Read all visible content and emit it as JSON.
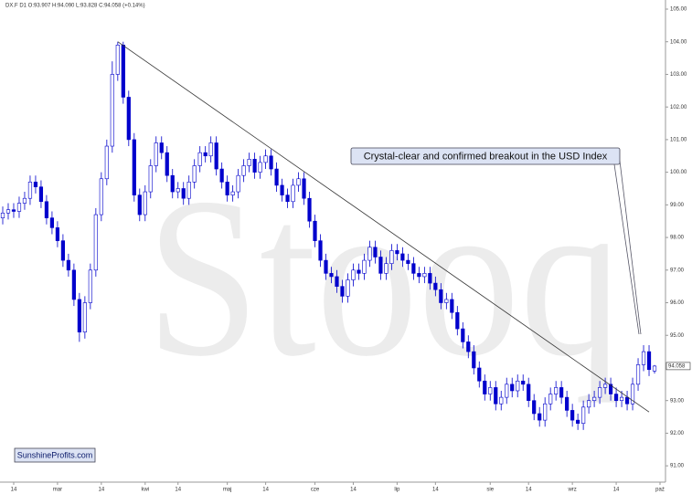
{
  "chart_data": {
    "type": "candlestick",
    "header": "DX.F  D1  O:93.907  H:94.090  L:93.828  C:94.058  (+0.14%)",
    "watermark": "Stooq",
    "annotation": "Crystal-clear and confirmed breakout in the USD Index",
    "source": "SunshineProfits.com",
    "up_color": "#ffffff",
    "down_color": "#0000cc",
    "line_color": "#0000cc",
    "open": [
      98.6,
      98.75,
      98.85,
      98.8,
      99.05,
      99.2,
      99.7,
      99.55,
      99.1,
      98.6,
      98.3,
      97.9,
      97.3,
      97.0,
      96.1,
      95.1,
      96.0,
      97.0,
      98.7,
      99.8,
      100.8,
      103.0,
      103.9,
      102.3,
      101.0,
      99.3,
      98.7,
      99.4,
      100.2,
      100.9,
      100.6,
      99.9,
      99.4,
      99.5,
      99.2,
      99.7,
      100.2,
      100.6,
      100.5,
      100.9,
      100.1,
      99.7,
      99.3,
      99.4,
      99.9,
      100.2,
      100.4,
      100.0,
      100.3,
      100.5,
      100.1,
      99.6,
      99.3,
      99.1,
      99.6,
      99.8,
      99.2,
      98.5,
      97.9,
      97.3,
      96.9,
      96.8,
      96.5,
      96.2,
      96.7,
      97.0,
      96.9,
      97.3,
      97.7,
      97.4,
      96.9,
      97.2,
      97.6,
      97.5,
      97.3,
      97.2,
      96.9,
      96.8,
      96.9,
      96.6,
      96.4,
      96.0,
      96.1,
      95.7,
      95.2,
      94.8,
      94.5,
      94.0,
      93.6,
      93.2,
      93.4,
      92.9,
      93.1,
      93.5,
      93.3,
      93.6,
      93.5,
      93.0,
      92.6,
      92.4,
      92.9,
      93.2,
      93.4,
      93.1,
      92.7,
      92.4,
      92.3,
      92.8,
      93.0,
      93.1,
      93.4,
      93.5,
      93.2,
      93.0,
      93.1,
      92.9,
      93.5,
      94.1,
      94.5,
      93.907
    ],
    "high": [
      98.95,
      99.05,
      99.05,
      99.25,
      99.4,
      99.9,
      99.9,
      99.75,
      99.3,
      98.8,
      98.5,
      98.1,
      97.5,
      97.2,
      96.3,
      96.2,
      97.2,
      98.9,
      100.0,
      101.0,
      103.4,
      104.0,
      104.0,
      102.5,
      101.2,
      99.5,
      99.6,
      100.4,
      101.1,
      101.1,
      100.8,
      100.1,
      99.7,
      99.7,
      99.9,
      100.4,
      100.8,
      100.8,
      101.1,
      101.1,
      100.3,
      99.9,
      99.6,
      100.1,
      100.4,
      100.6,
      100.6,
      100.5,
      100.7,
      100.7,
      100.3,
      99.8,
      99.5,
      99.8,
      100.0,
      100.0,
      99.4,
      98.7,
      98.1,
      97.5,
      97.1,
      97.0,
      96.7,
      96.9,
      97.2,
      97.2,
      97.5,
      97.9,
      97.9,
      97.6,
      97.4,
      97.8,
      97.8,
      97.7,
      97.5,
      97.4,
      97.1,
      97.1,
      97.1,
      96.8,
      96.6,
      96.3,
      96.3,
      95.9,
      95.4,
      95.0,
      94.7,
      94.2,
      93.8,
      93.6,
      93.6,
      93.3,
      93.7,
      93.7,
      93.8,
      93.8,
      93.7,
      93.2,
      92.8,
      93.1,
      93.4,
      93.6,
      93.6,
      93.3,
      92.9,
      92.6,
      93.0,
      93.2,
      93.3,
      93.6,
      93.7,
      93.7,
      93.4,
      93.3,
      93.3,
      93.7,
      94.3,
      94.7,
      94.7,
      94.09
    ],
    "low": [
      98.4,
      98.55,
      98.6,
      98.6,
      98.85,
      99.0,
      99.35,
      98.9,
      98.4,
      98.1,
      97.7,
      97.1,
      96.8,
      95.9,
      94.8,
      94.9,
      95.8,
      96.8,
      98.5,
      99.6,
      100.6,
      102.8,
      102.1,
      100.8,
      99.1,
      98.5,
      98.5,
      99.2,
      100.0,
      100.4,
      99.7,
      99.2,
      99.2,
      99.0,
      99.0,
      99.5,
      100.0,
      100.3,
      100.3,
      99.9,
      99.5,
      99.1,
      99.1,
      99.2,
      99.7,
      100.0,
      99.8,
      99.8,
      100.1,
      99.9,
      99.4,
      99.1,
      98.9,
      98.9,
      99.4,
      99.0,
      98.3,
      97.7,
      97.1,
      96.7,
      96.6,
      96.3,
      96.0,
      96.0,
      96.5,
      96.7,
      96.7,
      97.1,
      97.2,
      96.7,
      96.7,
      97.0,
      97.3,
      97.1,
      97.0,
      96.7,
      96.6,
      96.6,
      96.4,
      96.2,
      95.8,
      95.8,
      95.5,
      95.0,
      94.6,
      94.3,
      93.8,
      93.4,
      93.0,
      93.0,
      92.7,
      92.7,
      92.9,
      93.1,
      93.1,
      93.3,
      92.8,
      92.4,
      92.2,
      92.2,
      92.7,
      93.0,
      92.9,
      92.5,
      92.2,
      92.1,
      92.1,
      92.6,
      92.8,
      92.9,
      93.2,
      93.0,
      92.8,
      92.8,
      92.7,
      92.7,
      93.3,
      93.9,
      93.75,
      93.828
    ],
    "close": [
      98.75,
      98.85,
      98.8,
      99.05,
      99.2,
      99.7,
      99.55,
      99.1,
      98.6,
      98.3,
      97.9,
      97.3,
      97.0,
      96.1,
      95.1,
      96.0,
      97.0,
      98.7,
      99.8,
      100.8,
      103.0,
      103.9,
      102.3,
      101.0,
      99.3,
      98.7,
      99.4,
      100.2,
      100.9,
      100.6,
      99.9,
      99.4,
      99.5,
      99.2,
      99.7,
      100.2,
      100.6,
      100.5,
      100.9,
      100.1,
      99.7,
      99.3,
      99.4,
      99.9,
      100.2,
      100.4,
      100.0,
      100.3,
      100.5,
      100.1,
      99.6,
      99.3,
      99.1,
      99.6,
      99.8,
      99.2,
      98.5,
      97.9,
      97.3,
      96.9,
      96.8,
      96.5,
      96.2,
      96.7,
      97.0,
      96.9,
      97.3,
      97.7,
      97.4,
      96.9,
      97.2,
      97.6,
      97.5,
      97.3,
      97.2,
      96.9,
      96.8,
      96.9,
      96.6,
      96.4,
      96.0,
      96.1,
      95.7,
      95.2,
      94.8,
      94.5,
      94.0,
      93.6,
      93.2,
      93.4,
      92.9,
      93.1,
      93.5,
      93.3,
      93.6,
      93.5,
      93.0,
      92.6,
      92.4,
      92.9,
      93.2,
      93.4,
      93.1,
      92.7,
      92.4,
      92.3,
      92.8,
      93.0,
      93.1,
      93.4,
      93.5,
      93.2,
      93.0,
      93.1,
      92.9,
      93.5,
      94.1,
      94.5,
      93.95,
      94.058
    ],
    "trendline": {
      "x": [
        21,
        118
      ],
      "y": [
        104.0,
        92.65
      ]
    },
    "xlim": [
      -0.5,
      121
    ],
    "xticks": [
      {
        "value": 2,
        "label": "14"
      },
      {
        "value": 10,
        "label": "mar"
      },
      {
        "value": 18,
        "label": "14"
      },
      {
        "value": 26,
        "label": "kwi"
      },
      {
        "value": 32,
        "label": "14"
      },
      {
        "value": 41,
        "label": "maj"
      },
      {
        "value": 48,
        "label": "14"
      },
      {
        "value": 57,
        "label": "cze"
      },
      {
        "value": 64,
        "label": "14"
      },
      {
        "value": 72,
        "label": "lip"
      },
      {
        "value": 79,
        "label": "14"
      },
      {
        "value": 89,
        "label": "sie"
      },
      {
        "value": 96,
        "label": "14"
      },
      {
        "value": 104,
        "label": "wrz"
      },
      {
        "value": 112,
        "label": "14"
      },
      {
        "value": 120,
        "label": "paź"
      }
    ],
    "ylim": [
      90.5,
      105.28
    ],
    "yticks": [
      {
        "value": 91,
        "label": "91.00"
      },
      {
        "value": 92,
        "label": "92.00"
      },
      {
        "value": 93,
        "label": "93.00"
      },
      {
        "value": 95,
        "label": "95.00"
      },
      {
        "value": 96,
        "label": "96.00"
      },
      {
        "value": 97,
        "label": "97.00"
      },
      {
        "value": 98,
        "label": "98.00"
      },
      {
        "value": 99,
        "label": "99.00"
      },
      {
        "value": 100,
        "label": "100.00"
      },
      {
        "value": 101,
        "label": "101.00"
      },
      {
        "value": 102,
        "label": "102.00"
      },
      {
        "value": 103,
        "label": "103.00"
      },
      {
        "value": 104,
        "label": "104.00"
      },
      {
        "value": 105,
        "label": "105.00"
      }
    ]
  }
}
